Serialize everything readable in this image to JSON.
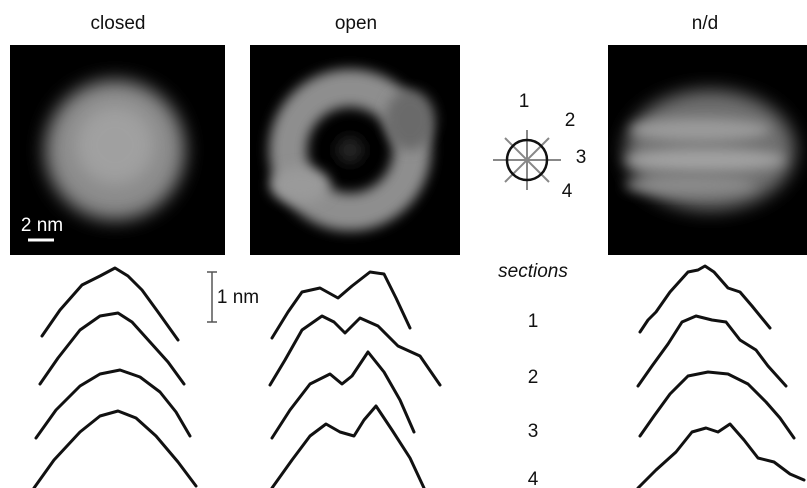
{
  "panels": [
    {
      "title": "closed",
      "scale_bar": "2 nm"
    },
    {
      "title": "open"
    },
    {
      "title": "n/d"
    }
  ],
  "diagram": {
    "labels": [
      "1",
      "2",
      "3",
      "4"
    ]
  },
  "height_scale": "1 nm",
  "sections": {
    "title": "sections",
    "labels": [
      "1",
      "2",
      "3",
      "4"
    ]
  }
}
